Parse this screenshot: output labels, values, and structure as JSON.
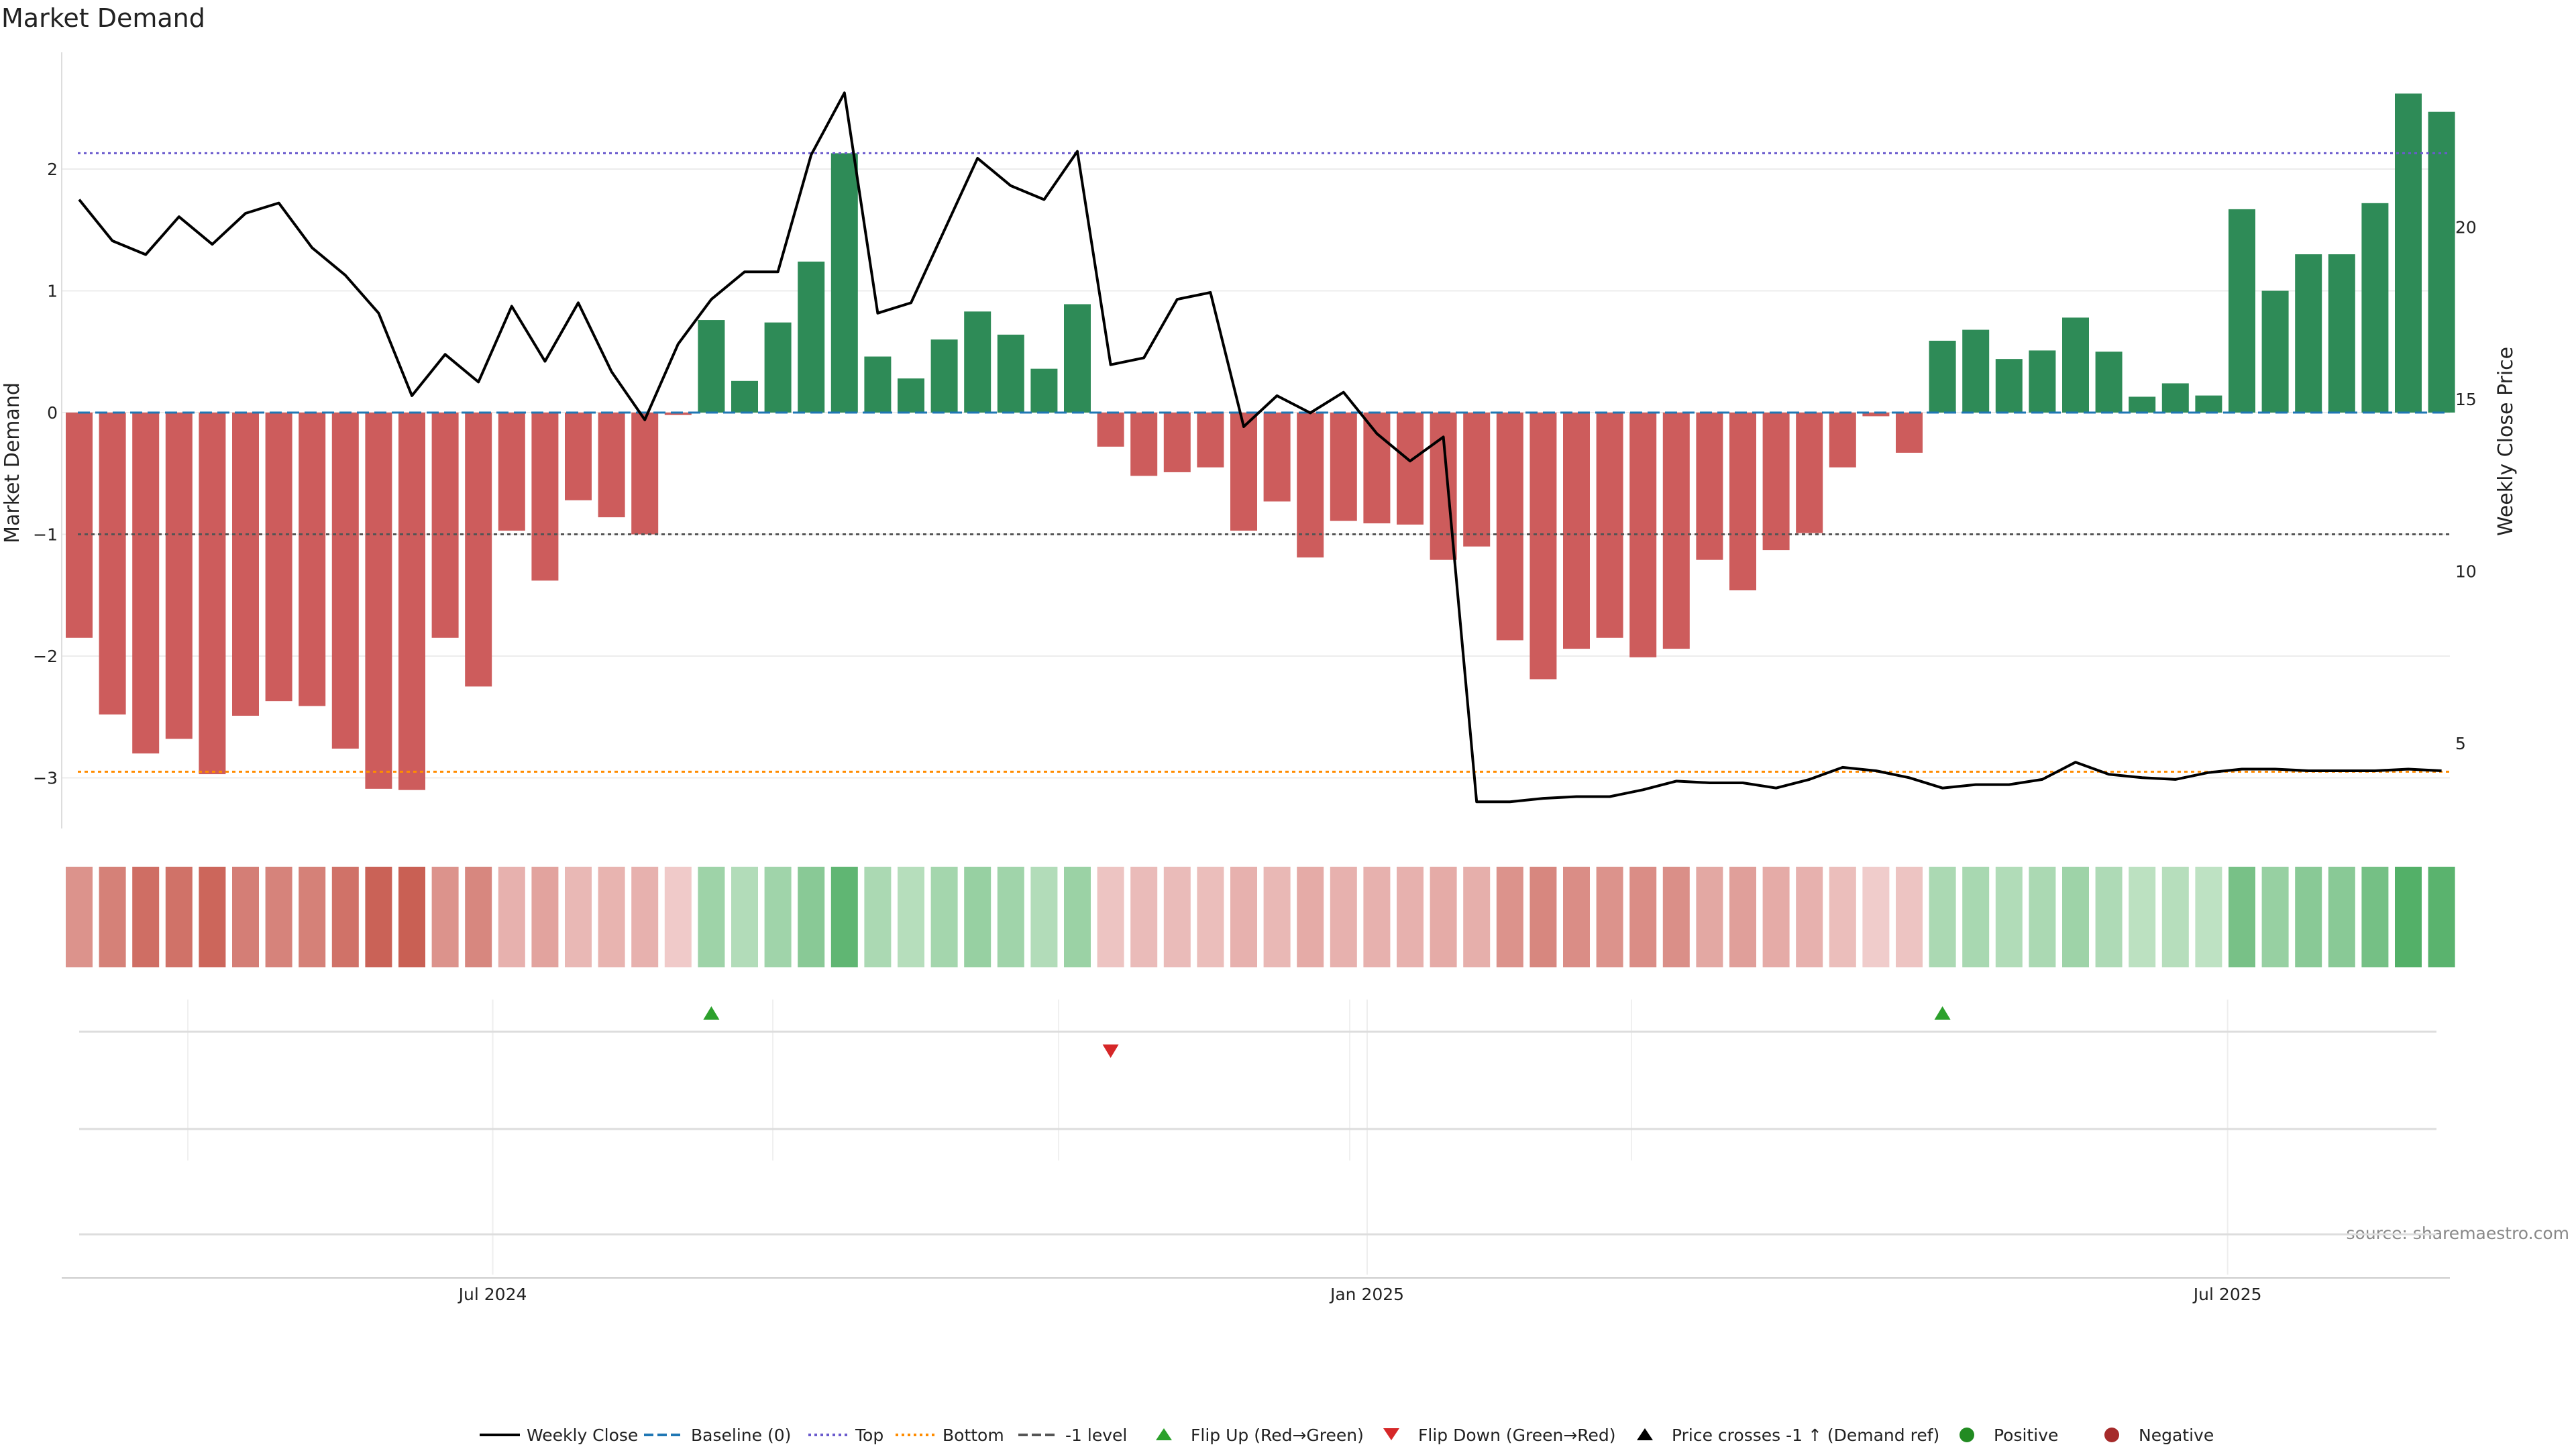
{
  "chart_data": {
    "type": "bar",
    "title": "Market Demand",
    "ylabel": "Market Demand",
    "y2label": "Weekly Close Price",
    "ylim": [
      -3.4,
      2.95
    ],
    "y2lim": [
      3.1,
      25.7
    ],
    "yticks": [
      2,
      1,
      0,
      -1,
      -2,
      -3
    ],
    "ytick_labels": [
      "2",
      "1",
      "0",
      "−1",
      "−2",
      "−3"
    ],
    "y2ticks": [
      20,
      15,
      10,
      5
    ],
    "y2tick_labels": [
      "20",
      "15",
      "10",
      "5"
    ],
    "xticks": [
      {
        "label": "Jul 2024",
        "index": 12.43
      },
      {
        "label": "Jan 2025",
        "index": 38.71
      },
      {
        "label": "Jul 2025",
        "index": 64.57
      }
    ],
    "reference_lines": {
      "top": 2.13,
      "bottom": -2.95,
      "minus_one": -1,
      "baseline": 0
    },
    "colors": {
      "positive_bar": "#2e8b57",
      "negative_bar": "#cd5c5c",
      "price_line": "#000000",
      "baseline": "#1f77b4",
      "top": "#6a5acd",
      "bottom": "#ff8c00",
      "minus_one": "#555555",
      "flip_up": "#2ca02c",
      "flip_down": "#d62728",
      "positive_dot": "#228b22",
      "negative_dot": "#a52a2a"
    },
    "demand": [
      -1.85,
      -2.48,
      -2.8,
      -2.68,
      -2.97,
      -2.49,
      -2.37,
      -2.41,
      -2.76,
      -3.09,
      -3.1,
      -1.85,
      -2.25,
      -0.97,
      -1.38,
      -0.72,
      -0.86,
      -1.0,
      -0.02,
      0.76,
      0.26,
      0.74,
      1.24,
      2.13,
      0.46,
      0.28,
      0.6,
      0.83,
      0.64,
      0.36,
      0.89,
      -0.28,
      -0.52,
      -0.49,
      -0.45,
      -0.97,
      -0.73,
      -1.19,
      -0.89,
      -0.91,
      -0.92,
      -1.21,
      -1.1,
      -1.87,
      -2.19,
      -1.94,
      -1.85,
      -2.01,
      -1.94,
      -1.21,
      -1.46,
      -1.13,
      -0.99,
      -0.45,
      -0.03,
      -0.33,
      0.59,
      0.68,
      0.44,
      0.51,
      0.78,
      0.5,
      0.13,
      0.24,
      0.14,
      1.67,
      1.0,
      1.3,
      1.3,
      1.72,
      2.62,
      2.47
    ],
    "price": [
      20.8,
      19.6,
      19.2,
      20.3,
      19.5,
      20.4,
      20.7,
      19.4,
      18.6,
      17.5,
      15.1,
      16.3,
      15.5,
      17.7,
      16.1,
      17.8,
      15.8,
      14.4,
      16.6,
      17.9,
      18.7,
      18.7,
      22.1,
      23.9,
      17.5,
      17.8,
      19.9,
      22.0,
      21.2,
      20.8,
      22.2,
      16.0,
      16.2,
      17.9,
      18.1,
      14.2,
      15.1,
      14.6,
      15.2,
      14.0,
      13.2,
      13.9,
      3.3,
      3.3,
      3.4,
      3.45,
      3.45,
      3.65,
      3.9,
      3.85,
      3.85,
      3.7,
      3.95,
      4.3,
      4.2,
      4.0,
      3.7,
      3.8,
      3.8,
      3.95,
      4.45,
      4.1,
      4.0,
      3.95,
      4.15,
      4.25,
      4.25,
      4.2,
      4.2,
      4.2,
      4.25,
      4.2
    ],
    "heat_intensity": [
      0.55,
      0.7,
      0.85,
      0.82,
      0.92,
      0.72,
      0.68,
      0.7,
      0.82,
      0.95,
      0.97,
      0.55,
      0.65,
      0.3,
      0.42,
      0.25,
      0.28,
      0.3,
      0.1,
      0.4,
      0.25,
      0.38,
      0.55,
      0.85,
      0.3,
      0.22,
      0.35,
      0.45,
      0.38,
      0.25,
      0.42,
      0.15,
      0.22,
      0.22,
      0.2,
      0.3,
      0.25,
      0.35,
      0.3,
      0.3,
      0.3,
      0.35,
      0.32,
      0.55,
      0.65,
      0.6,
      0.55,
      0.6,
      0.58,
      0.38,
      0.45,
      0.35,
      0.3,
      0.2,
      0.08,
      0.15,
      0.3,
      0.32,
      0.26,
      0.3,
      0.4,
      0.28,
      0.18,
      0.22,
      0.16,
      0.68,
      0.45,
      0.55,
      0.55,
      0.7,
      0.95,
      0.9
    ],
    "flip_up_indices": [
      19,
      56
    ],
    "flip_down_indices": [
      31
    ],
    "legend": [
      {
        "label": "Weekly Close",
        "kind": "line-solid",
        "color": "#000000"
      },
      {
        "label": "Baseline (0)",
        "kind": "line-dashed",
        "color": "#1f77b4"
      },
      {
        "label": "Top",
        "kind": "line-dotted",
        "color": "#6a5acd"
      },
      {
        "label": "Bottom",
        "kind": "line-dotted",
        "color": "#ff8c00"
      },
      {
        "label": "-1 level",
        "kind": "line-dashed",
        "color": "#555555"
      },
      {
        "label": "Flip Up (Red→Green)",
        "kind": "tri-up",
        "color": "#2ca02c"
      },
      {
        "label": "Flip Down (Green→Red)",
        "kind": "tri-down",
        "color": "#d62728"
      },
      {
        "label": "Price crosses -1 ↑ (Demand ref)",
        "kind": "tri-up",
        "color": "#000000"
      },
      {
        "label": "Positive",
        "kind": "dot",
        "color": "#228b22"
      },
      {
        "label": "Negative",
        "kind": "dot",
        "color": "#a52a2a"
      }
    ],
    "source": "source: sharemaestro.com"
  }
}
